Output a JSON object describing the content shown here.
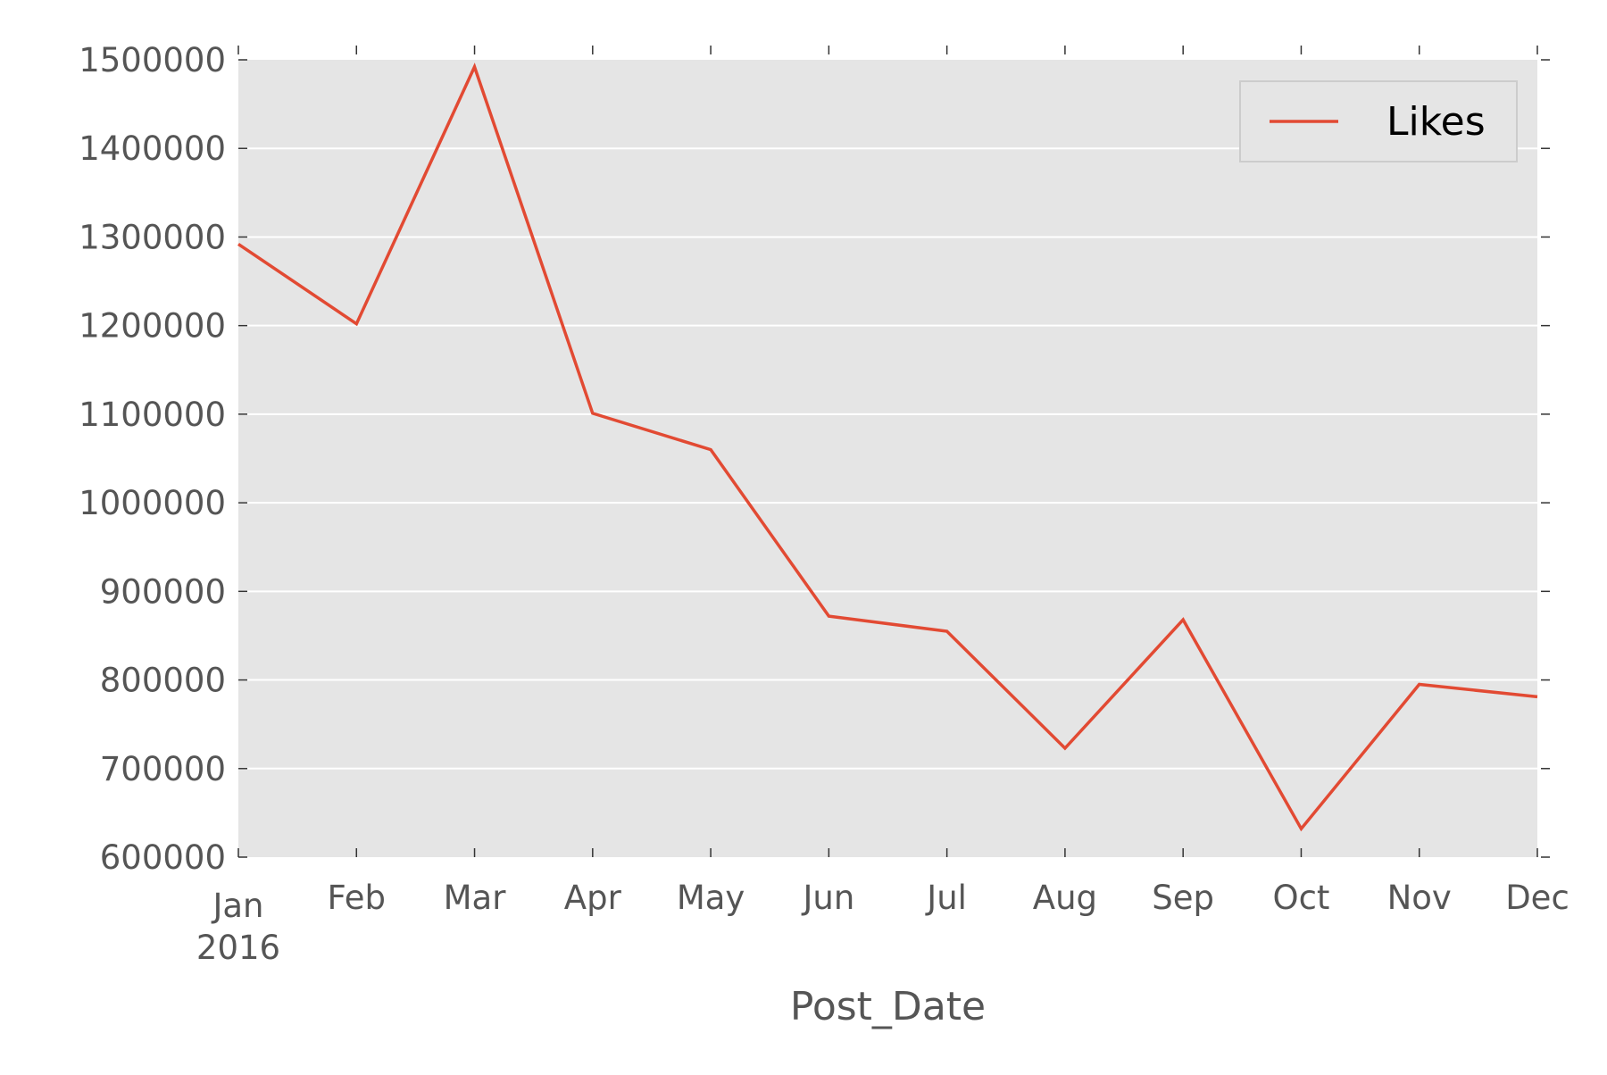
{
  "chart_data": {
    "type": "line",
    "title": "",
    "xlabel": "Post_Date",
    "ylabel": "",
    "x": [
      "2016-01",
      "2016-02",
      "2016-03",
      "2016-04",
      "2016-05",
      "2016-06",
      "2016-07",
      "2016-08",
      "2016-09",
      "2016-10",
      "2016-11",
      "2016-12"
    ],
    "x_tick_labels": [
      "Jan",
      "Feb",
      "Mar",
      "Apr",
      "May",
      "Jun",
      "Jul",
      "Aug",
      "Sep",
      "Oct",
      "Nov",
      "Dec"
    ],
    "x_year_label": "2016",
    "y_ticks": [
      600000,
      700000,
      800000,
      900000,
      1000000,
      1100000,
      1200000,
      1300000,
      1400000,
      1500000
    ],
    "ylim": [
      600000,
      1500000
    ],
    "series": [
      {
        "name": "Likes",
        "color": "#e24a33",
        "values": [
          1292000,
          1202000,
          1492000,
          1101000,
          1060000,
          872000,
          855000,
          723000,
          868000,
          632000,
          795000,
          781000
        ]
      }
    ],
    "grid": true,
    "legend": "top-right",
    "background_color": "#e5e5e5",
    "grid_color": "#ffffff"
  }
}
